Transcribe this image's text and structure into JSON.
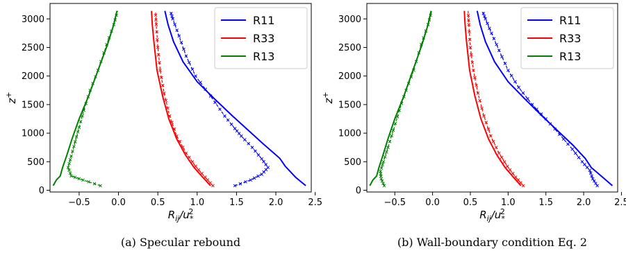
{
  "chart_data": [
    {
      "type": "line",
      "caption": "(a) Specular rebound",
      "xlabel_base": "R",
      "xlabel_sub": "ij",
      "xlabel_mid": "/u",
      "xlabel_sub2": "*",
      "xlabel_sup2": "2",
      "ylabel_base": "z",
      "ylabel_sup": "+",
      "xlim": [
        -0.87,
        2.45
      ],
      "ylim": [
        -30,
        3270
      ],
      "xticks": [
        -0.5,
        0.0,
        0.5,
        1.0,
        1.5,
        2.0,
        2.5
      ],
      "xtick_labels": [
        "−0.5",
        "0.0",
        "0.5",
        "1.0",
        "1.5",
        "2.0",
        "2.5"
      ],
      "yticks": [
        0,
        500,
        1000,
        1500,
        2000,
        2500,
        3000
      ],
      "ytick_labels": [
        "0",
        "500",
        "1000",
        "1500",
        "2000",
        "2500",
        "3000"
      ],
      "legend": {
        "position": "top-right",
        "entries": [
          "R11",
          "R33",
          "R13"
        ]
      },
      "series": [
        {
          "name": "R11",
          "color": "#0000ff",
          "style": "solid",
          "points": [
            [
              2.38,
              80
            ],
            [
              2.25,
              230
            ],
            [
              2.12,
              420
            ],
            [
              2.05,
              560
            ],
            [
              1.85,
              800
            ],
            [
              1.65,
              1050
            ],
            [
              1.45,
              1300
            ],
            [
              1.22,
              1600
            ],
            [
              1.0,
              1900
            ],
            [
              0.82,
              2250
            ],
            [
              0.7,
              2600
            ],
            [
              0.63,
              2900
            ],
            [
              0.59,
              3140
            ]
          ]
        },
        {
          "name": "R11 model",
          "color": "#0000ff",
          "style": "dashed",
          "points": [
            [
              1.48,
              80
            ],
            [
              1.68,
              180
            ],
            [
              1.82,
              280
            ],
            [
              1.9,
              400
            ],
            [
              1.82,
              550
            ],
            [
              1.7,
              750
            ],
            [
              1.56,
              950
            ],
            [
              1.48,
              1080
            ],
            [
              1.35,
              1300
            ],
            [
              1.17,
              1650
            ],
            [
              0.98,
              2000
            ],
            [
              0.86,
              2350
            ],
            [
              0.77,
              2700
            ],
            [
              0.69,
              3000
            ],
            [
              0.66,
              3140
            ]
          ]
        },
        {
          "name": "R33",
          "color": "#ff0000",
          "style": "solid",
          "points": [
            [
              1.17,
              80
            ],
            [
              1.07,
              230
            ],
            [
              0.96,
              400
            ],
            [
              0.85,
              620
            ],
            [
              0.74,
              900
            ],
            [
              0.64,
              1250
            ],
            [
              0.56,
              1650
            ],
            [
              0.49,
              2100
            ],
            [
              0.45,
              2600
            ],
            [
              0.43,
              2900
            ],
            [
              0.42,
              3140
            ]
          ]
        },
        {
          "name": "R33 model",
          "color": "#ff0000",
          "style": "dashed",
          "points": [
            [
              1.2,
              80
            ],
            [
              1.1,
              230
            ],
            [
              0.98,
              420
            ],
            [
              0.86,
              650
            ],
            [
              0.74,
              950
            ],
            [
              0.65,
              1300
            ],
            [
              0.58,
              1700
            ],
            [
              0.53,
              2100
            ],
            [
              0.5,
              2500
            ],
            [
              0.48,
              2900
            ],
            [
              0.47,
              3140
            ]
          ]
        },
        {
          "name": "R13",
          "color": "#008000",
          "style": "solid",
          "points": [
            [
              -0.83,
              80
            ],
            [
              -0.79,
              180
            ],
            [
              -0.74,
              250
            ],
            [
              -0.71,
              400
            ],
            [
              -0.66,
              600
            ],
            [
              -0.59,
              900
            ],
            [
              -0.5,
              1250
            ],
            [
              -0.38,
              1650
            ],
            [
              -0.26,
              2100
            ],
            [
              -0.14,
              2550
            ],
            [
              -0.06,
              2900
            ],
            [
              -0.02,
              3140
            ]
          ]
        },
        {
          "name": "R13 model",
          "color": "#008000",
          "style": "dashed",
          "points": [
            [
              -0.23,
              80
            ],
            [
              -0.45,
              180
            ],
            [
              -0.6,
              250
            ],
            [
              -0.64,
              400
            ],
            [
              -0.6,
              600
            ],
            [
              -0.55,
              850
            ],
            [
              -0.5,
              1100
            ],
            [
              -0.44,
              1400
            ],
            [
              -0.36,
              1750
            ],
            [
              -0.26,
              2100
            ],
            [
              -0.15,
              2550
            ],
            [
              -0.06,
              2900
            ],
            [
              -0.01,
              3140
            ]
          ]
        }
      ]
    },
    {
      "type": "line",
      "caption": "(b) Wall-boundary condition Eq. 2",
      "xlabel_base": "R",
      "xlabel_sub": "ij",
      "xlabel_mid": "/u",
      "xlabel_sub2": "*",
      "xlabel_sup2": "2",
      "ylabel_base": "z",
      "ylabel_sup": "+",
      "xlim": [
        -0.87,
        2.45
      ],
      "ylim": [
        -30,
        3270
      ],
      "xticks": [
        -0.5,
        0.0,
        0.5,
        1.0,
        1.5,
        2.0,
        2.5
      ],
      "xtick_labels": [
        "−0.5",
        "0.0",
        "0.5",
        "1.0",
        "1.5",
        "2.0",
        "2.5"
      ],
      "yticks": [
        0,
        500,
        1000,
        1500,
        2000,
        2500,
        3000
      ],
      "ytick_labels": [
        "0",
        "500",
        "1000",
        "1500",
        "2000",
        "2500",
        "3000"
      ],
      "legend": {
        "position": "top-right",
        "entries": [
          "R11",
          "R33",
          "R13"
        ]
      },
      "series": [
        {
          "name": "R11",
          "color": "#0000ff",
          "style": "solid",
          "points": [
            [
              2.38,
              80
            ],
            [
              2.25,
              230
            ],
            [
              2.1,
              400
            ],
            [
              2.02,
              560
            ],
            [
              1.85,
              800
            ],
            [
              1.65,
              1050
            ],
            [
              1.45,
              1300
            ],
            [
              1.22,
              1600
            ],
            [
              1.0,
              1900
            ],
            [
              0.82,
              2250
            ],
            [
              0.7,
              2600
            ],
            [
              0.63,
              2900
            ],
            [
              0.59,
              3140
            ]
          ]
        },
        {
          "name": "R11 model",
          "color": "#0000ff",
          "style": "dashed",
          "points": [
            [
              2.18,
              80
            ],
            [
              2.12,
              200
            ],
            [
              2.08,
              350
            ],
            [
              1.98,
              500
            ],
            [
              1.85,
              720
            ],
            [
              1.68,
              980
            ],
            [
              1.5,
              1250
            ],
            [
              1.32,
              1500
            ],
            [
              1.14,
              1800
            ],
            [
              1.0,
              2100
            ],
            [
              0.88,
              2450
            ],
            [
              0.78,
              2750
            ],
            [
              0.7,
              3000
            ],
            [
              0.66,
              3140
            ]
          ]
        },
        {
          "name": "R33",
          "color": "#ff0000",
          "style": "solid",
          "points": [
            [
              1.17,
              80
            ],
            [
              1.07,
              230
            ],
            [
              0.96,
              400
            ],
            [
              0.85,
              620
            ],
            [
              0.74,
              900
            ],
            [
              0.64,
              1250
            ],
            [
              0.56,
              1650
            ],
            [
              0.49,
              2100
            ],
            [
              0.45,
              2600
            ],
            [
              0.43,
              2900
            ],
            [
              0.42,
              3140
            ]
          ]
        },
        {
          "name": "R33 model",
          "color": "#ff0000",
          "style": "dashed",
          "points": [
            [
              1.2,
              80
            ],
            [
              1.1,
              230
            ],
            [
              0.99,
              420
            ],
            [
              0.88,
              650
            ],
            [
              0.77,
              950
            ],
            [
              0.68,
              1300
            ],
            [
              0.6,
              1700
            ],
            [
              0.54,
              2100
            ],
            [
              0.5,
              2500
            ],
            [
              0.48,
              2900
            ],
            [
              0.47,
              3140
            ]
          ]
        },
        {
          "name": "R13",
          "color": "#008000",
          "style": "solid",
          "points": [
            [
              -0.83,
              80
            ],
            [
              -0.79,
              180
            ],
            [
              -0.74,
              250
            ],
            [
              -0.71,
              400
            ],
            [
              -0.66,
              600
            ],
            [
              -0.59,
              900
            ],
            [
              -0.5,
              1250
            ],
            [
              -0.38,
              1650
            ],
            [
              -0.26,
              2100
            ],
            [
              -0.14,
              2550
            ],
            [
              -0.06,
              2900
            ],
            [
              -0.02,
              3140
            ]
          ]
        },
        {
          "name": "R13 model",
          "color": "#008000",
          "style": "dashed",
          "points": [
            [
              -0.64,
              80
            ],
            [
              -0.68,
              200
            ],
            [
              -0.69,
              330
            ],
            [
              -0.65,
              500
            ],
            [
              -0.59,
              750
            ],
            [
              -0.52,
              1050
            ],
            [
              -0.44,
              1400
            ],
            [
              -0.35,
              1750
            ],
            [
              -0.25,
              2100
            ],
            [
              -0.15,
              2550
            ],
            [
              -0.06,
              2900
            ],
            [
              -0.01,
              3140
            ]
          ]
        }
      ]
    }
  ]
}
